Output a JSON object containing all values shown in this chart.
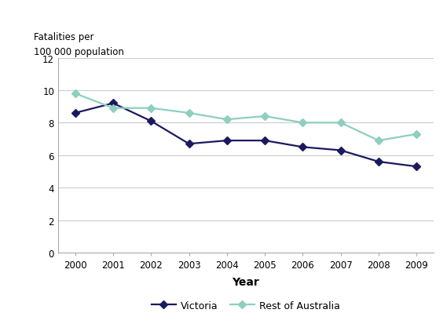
{
  "years": [
    2000,
    2001,
    2002,
    2003,
    2004,
    2005,
    2006,
    2007,
    2008,
    2009
  ],
  "victoria": [
    8.6,
    9.2,
    8.1,
    6.7,
    6.9,
    6.9,
    6.5,
    6.3,
    5.6,
    5.3
  ],
  "rest_of_australia": [
    9.8,
    8.9,
    8.9,
    8.6,
    8.2,
    8.4,
    8.0,
    8.0,
    6.9,
    7.3
  ],
  "victoria_color": "#1a1a5e",
  "rest_color": "#8ecfbf",
  "victoria_label": "Victoria",
  "rest_label": "Rest of Australia",
  "ylabel_line1": "Fatalities per",
  "ylabel_line2": "100 000 population",
  "xlabel": "Year",
  "ylim": [
    0,
    12
  ],
  "yticks": [
    0,
    2,
    4,
    6,
    8,
    10,
    12
  ],
  "grid_color": "#cccccc",
  "background_color": "#ffffff",
  "spine_color": "#aaaaaa"
}
